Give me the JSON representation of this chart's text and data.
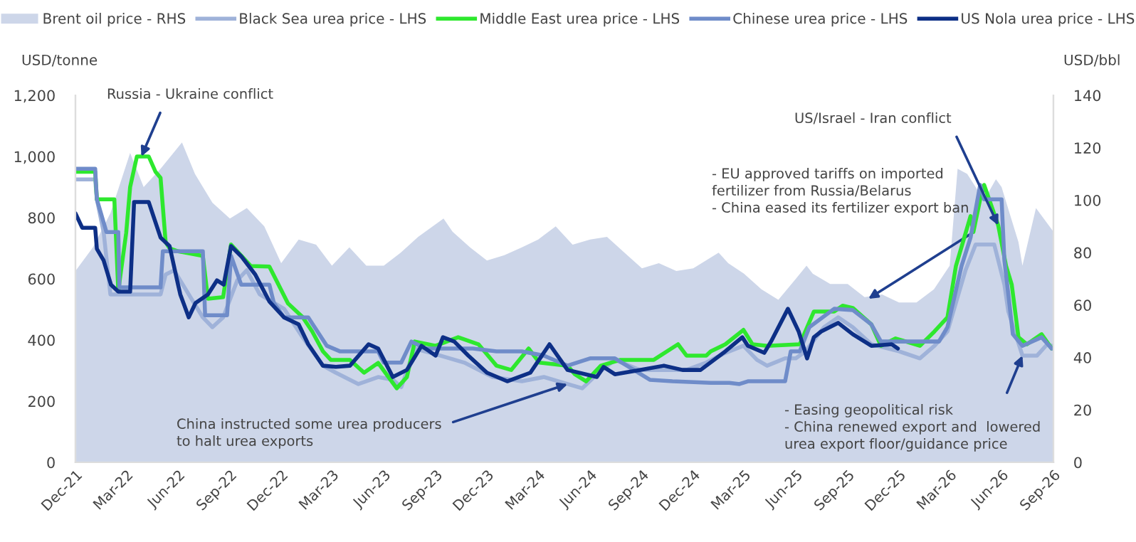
{
  "chart_data": {
    "type": "line",
    "ylabel": "USD/tonne",
    "y2label": "USD/bbl",
    "ylim": [
      0,
      1200
    ],
    "yticks": [
      0,
      200,
      400,
      600,
      800,
      {
        "value": 1000,
        "label": "1,000"
      },
      {
        "value": 1200,
        "label": "1,200"
      }
    ],
    "y2lim": [
      0,
      140
    ],
    "y2ticks": [
      0,
      20,
      40,
      60,
      80,
      100,
      120,
      140
    ],
    "xlim": [
      "2021-12-01",
      "2026-09-01"
    ],
    "xticks": [
      {
        "value": "2021-12-01",
        "label": "Dec-21"
      },
      {
        "value": "2022-03-01",
        "label": "Mar-22"
      },
      {
        "value": "2022-06-01",
        "label": "Jun-22"
      },
      {
        "value": "2022-09-01",
        "label": "Sep-22"
      },
      {
        "value": "2022-12-01",
        "label": "Dec-22"
      },
      {
        "value": "2023-03-01",
        "label": "Mar-23"
      },
      {
        "value": "2023-06-01",
        "label": "Jun-23"
      },
      {
        "value": "2023-09-01",
        "label": "Sep-23"
      },
      {
        "value": "2023-12-01",
        "label": "Dec-23"
      },
      {
        "value": "2024-03-01",
        "label": "Mar-24"
      },
      {
        "value": "2024-06-01",
        "label": "Jun-24"
      },
      {
        "value": "2024-09-01",
        "label": "Sep-24"
      },
      {
        "value": "2024-12-01",
        "label": "Dec-24"
      },
      {
        "value": "2025-03-01",
        "label": "Mar-25"
      },
      {
        "value": "2025-06-01",
        "label": "Jun-25"
      },
      {
        "value": "2025-09-01",
        "label": "Sep-25"
      },
      {
        "value": "2025-12-01",
        "label": "Dec-25"
      },
      {
        "value": "2026-03-01",
        "label": "Mar-26"
      },
      {
        "value": "2026-06-01",
        "label": "Jun-26"
      },
      {
        "value": "2026-09-01",
        "label": "Sep-26"
      }
    ],
    "legend": "top",
    "grid": false,
    "annotations": [
      {
        "text": "Russia - Ukraine conflict",
        "x": "2022-03-28",
        "y": 1000
      },
      {
        "text": "US/Israel - Iran conflict",
        "x": "2026-05-26",
        "y": 775
      },
      "- EU approved tariffs on imported\nfertilizer from Russia/Belarus\n- China eased its fertilizer export ban",
      {
        "text": "China instructed some urea producers\nto halt urea exports",
        "x": "2024-04-22",
        "y": 256
      },
      {
        "text": "- Easing geopolitical risk\n- China renewed export and  lowered\nurea export floor/guidance price",
        "x": "2026-07-08",
        "y": 349
      }
    ],
    "series": [
      {
        "name": "Brent oil price - RHS",
        "type": "area",
        "axis": "y2",
        "color": "#cdd6e9",
        "x": [
          "2021-12-01",
          "2022-01-01",
          "2022-02-01",
          "2022-03-08",
          "2022-04-01",
          "2022-05-01",
          "2022-06-08",
          "2022-07-01",
          "2022-08-01",
          "2022-09-01",
          "2022-10-01",
          "2022-11-01",
          "2022-12-01",
          "2023-01-01",
          "2023-02-01",
          "2023-03-01",
          "2023-04-01",
          "2023-05-01",
          "2023-06-01",
          "2023-07-01",
          "2023-08-01",
          "2023-09-15",
          "2023-10-01",
          "2023-11-01",
          "2023-12-01",
          "2024-01-01",
          "2024-02-01",
          "2024-03-01",
          "2024-04-01",
          "2024-05-01",
          "2024-06-01",
          "2024-07-01",
          "2024-08-01",
          "2024-09-01",
          "2024-10-01",
          "2024-11-01",
          "2024-12-01",
          "2025-01-15",
          "2025-02-01",
          "2025-03-01",
          "2025-04-01",
          "2025-05-01",
          "2025-06-01",
          "2025-06-20",
          "2025-07-01",
          "2025-08-01",
          "2025-09-01",
          "2025-10-01",
          "2025-11-01",
          "2025-12-01",
          "2026-01-01",
          "2026-02-01",
          "2026-03-01",
          "2026-03-15",
          "2026-04-01",
          "2026-05-01",
          "2026-05-22",
          "2026-06-01",
          "2026-07-01",
          "2026-07-08",
          "2026-08-01",
          "2026-09-01"
        ],
        "values": [
          73,
          82,
          95,
          118,
          105,
          112,
          122,
          110,
          99,
          93,
          97,
          90,
          76,
          85,
          83,
          75,
          82,
          75,
          75,
          80,
          86,
          93,
          88,
          82,
          77,
          79,
          82,
          85,
          90,
          83,
          85,
          86,
          80,
          74,
          76,
          73,
          74,
          80,
          76,
          72,
          66,
          62,
          70,
          75,
          72,
          68,
          68,
          63,
          64,
          61,
          61,
          66,
          75,
          112,
          110,
          100,
          108,
          105,
          84,
          75,
          97,
          88
        ]
      },
      {
        "name": "Black Sea urea price - LHS",
        "color": "#9fb2d9",
        "x": [
          "2021-12-01",
          "2022-01-05",
          "2022-01-08",
          "2022-01-20",
          "2022-02-01",
          "2022-05-01",
          "2022-05-10",
          "2022-05-25",
          "2022-06-20",
          "2022-07-15",
          "2022-08-01",
          "2022-08-20",
          "2022-09-14",
          "2022-10-01",
          "2022-10-24",
          "2022-12-06",
          "2023-01-08",
          "2023-02-13",
          "2023-03-08",
          "2023-04-17",
          "2023-05-22",
          "2023-06-17",
          "2023-07-02",
          "2023-07-26",
          "2023-09-09",
          "2023-10-22",
          "2023-12-11",
          "2024-02-01",
          "2024-03-11",
          "2024-04-22",
          "2024-05-18",
          "2024-06-13",
          "2024-07-15",
          "2024-08-28",
          "2024-11-19",
          "2024-12-24",
          "2025-01-27",
          "2025-02-28",
          "2025-03-24",
          "2025-04-11",
          "2025-05-13",
          "2025-06-01",
          "2025-06-18",
          "2025-07-21",
          "2025-08-15",
          "2025-09-10",
          "2025-10-13",
          "2025-12-01",
          "2026-01-07",
          "2026-02-02",
          "2026-02-25",
          "2026-03-29",
          "2026-04-16",
          "2026-05-19",
          "2026-06-06",
          "2026-06-13",
          "2026-07-08",
          "2026-08-03",
          "2026-08-21",
          "2026-08-29"
        ],
        "values": [
          925,
          925,
          860,
          753,
          549,
          549,
          614,
          628,
          549,
          474,
          442,
          474,
          595,
          628,
          549,
          502,
          409,
          316,
          293,
          256,
          279,
          270,
          246,
          372,
          349,
          326,
          279,
          265,
          279,
          256,
          242,
          288,
          335,
          302,
          302,
          326,
          358,
          381,
          335,
          316,
          340,
          340,
          363,
          442,
          474,
          442,
          386,
          363,
          340,
          381,
          428,
          628,
          712,
          712,
          581,
          493,
          349,
          349,
          386,
          381
        ]
      },
      {
        "name": "Middle East urea price - LHS",
        "color": "#2ee82e",
        "x": [
          "2021-12-01",
          "2022-01-05",
          "2022-01-08",
          "2022-02-01",
          "2022-02-08",
          "2022-02-15",
          "2022-03-01",
          "2022-03-08",
          "2022-03-20",
          "2022-04-10",
          "2022-04-22",
          "2022-05-01",
          "2022-05-10",
          "2022-05-17",
          "2022-06-01",
          "2022-07-15",
          "2022-07-24",
          "2022-08-20",
          "2022-09-03",
          "2022-10-08",
          "2022-11-10",
          "2022-12-13",
          "2023-01-08",
          "2023-01-25",
          "2023-02-13",
          "2023-02-27",
          "2023-04-02",
          "2023-04-27",
          "2023-05-22",
          "2023-06-24",
          "2023-07-12",
          "2023-07-26",
          "2023-09-01",
          "2023-10-11",
          "2023-11-16",
          "2023-12-18",
          "2024-01-13",
          "2024-02-13",
          "2024-03-03",
          "2024-04-22",
          "2024-05-05",
          "2024-05-25",
          "2024-06-20",
          "2024-07-25",
          "2024-09-22",
          "2024-11-04",
          "2024-11-19",
          "2024-12-24",
          "2025-01-01",
          "2025-01-27",
          "2025-02-28",
          "2025-03-16",
          "2025-04-11",
          "2025-06-08",
          "2025-07-03",
          "2025-08-08",
          "2025-08-23",
          "2025-09-10",
          "2025-10-13",
          "2025-10-30",
          "2025-11-25",
          "2026-01-07",
          "2026-02-02",
          "2026-02-25",
          "2026-03-12",
          "2026-04-07",
          "2026-04-12",
          "2026-04-24",
          "2026-05-01",
          "2026-05-26",
          "2026-06-09",
          "2026-06-19",
          "2026-07-01",
          "2026-07-16",
          "2026-08-11",
          "2026-08-29"
        ],
        "values": [
          950,
          950,
          860,
          860,
          860,
          560,
          750,
          900,
          1000,
          1000,
          950,
          930,
          720,
          700,
          690,
          675,
          535,
          540,
          712,
          642,
          640,
          520,
          475,
          428,
          363,
          335,
          335,
          293,
          325,
          242,
          279,
          395,
          381,
          409,
          386,
          316,
          302,
          372,
          326,
          316,
          288,
          265,
          316,
          335,
          335,
          386,
          349,
          349,
          363,
          386,
          433,
          386,
          381,
          386,
          493,
          493,
          512,
          505,
          451,
          381,
          405,
          381,
          428,
          474,
          642,
          805,
          753,
          860,
          907,
          775,
          642,
          581,
          409,
          386,
          419,
          372
        ]
      },
      {
        "name": "Chinese urea price - LHS",
        "color": "#6f8cc9",
        "x": [
          "2021-12-01",
          "2022-01-05",
          "2022-01-08",
          "2022-01-25",
          "2022-02-15",
          "2022-02-17",
          "2022-05-01",
          "2022-05-05",
          "2022-07-15",
          "2022-07-19",
          "2022-08-27",
          "2022-09-03",
          "2022-09-21",
          "2022-11-10",
          "2022-11-18",
          "2022-12-06",
          "2023-01-18",
          "2023-02-20",
          "2023-03-15",
          "2023-05-22",
          "2023-06-01",
          "2023-07-02",
          "2023-07-20",
          "2023-08-14",
          "2023-11-06",
          "2023-12-18",
          "2024-02-01",
          "2024-03-11",
          "2024-04-22",
          "2024-06-01",
          "2024-07-15",
          "2024-09-15",
          "2024-10-25",
          "2025-01-01",
          "2025-02-03",
          "2025-02-21",
          "2025-03-08",
          "2025-05-13",
          "2025-05-23",
          "2025-06-08",
          "2025-06-25",
          "2025-08-08",
          "2025-09-10",
          "2025-10-13",
          "2025-10-30",
          "2026-02-10",
          "2026-02-25",
          "2026-03-22",
          "2026-04-07",
          "2026-04-24",
          "2026-05-01",
          "2026-06-01",
          "2026-06-06",
          "2026-06-13",
          "2026-06-21",
          "2026-07-08",
          "2026-08-11",
          "2026-08-29"
        ],
        "values": [
          960,
          960,
          860,
          753,
          753,
          572,
          572,
          690,
          690,
          481,
          481,
          675,
          581,
          581,
          521,
          474,
          474,
          381,
          363,
          363,
          326,
          326,
          395,
          372,
          372,
          363,
          363,
          349,
          316,
          340,
          340,
          270,
          265,
          260,
          260,
          256,
          265,
          265,
          363,
          363,
          442,
          502,
          498,
          451,
          395,
          395,
          442,
          642,
          735,
          907,
          860,
          860,
          660,
          549,
          419,
          381,
          409,
          372
        ]
      },
      {
        "name": "US Nola urea price - LHS",
        "color": "#0d2f86",
        "x": [
          "2021-12-01",
          "2021-12-13",
          "2022-01-05",
          "2022-01-08",
          "2022-01-20",
          "2022-02-02",
          "2022-02-15",
          "2022-03-08",
          "2022-03-15",
          "2022-04-10",
          "2022-05-01",
          "2022-05-17",
          "2022-06-01",
          "2022-06-05",
          "2022-06-20",
          "2022-07-02",
          "2022-07-24",
          "2022-08-09",
          "2022-08-21",
          "2022-09-03",
          "2022-09-21",
          "2022-10-16",
          "2022-11-10",
          "2022-12-06",
          "2023-01-01",
          "2023-01-18",
          "2023-02-13",
          "2023-03-08",
          "2023-04-02",
          "2023-05-05",
          "2023-05-22",
          "2023-06-17",
          "2023-07-12",
          "2023-08-07",
          "2023-09-01",
          "2023-09-14",
          "2023-10-04",
          "2023-10-29",
          "2023-12-01",
          "2024-01-06",
          "2024-02-16",
          "2024-03-21",
          "2024-04-22",
          "2024-06-13",
          "2024-06-25",
          "2024-07-15",
          "2024-08-28",
          "2024-10-10",
          "2024-11-12",
          "2024-12-14",
          "2025-01-27",
          "2025-02-26",
          "2025-03-08",
          "2025-04-06",
          "2025-04-18",
          "2025-05-18",
          "2025-06-06",
          "2025-06-21",
          "2025-07-03",
          "2025-07-16",
          "2025-08-15",
          "2025-09-10",
          "2025-10-13",
          "2025-11-18",
          "2025-11-29"
        ],
        "values": [
          814,
          767,
          767,
          698,
          660,
          581,
          558,
          558,
          851,
          851,
          735,
          707,
          581,
          549,
          474,
          521,
          549,
          595,
          581,
          707,
          674,
          614,
          526,
          474,
          451,
          386,
          316,
          312,
          316,
          386,
          372,
          279,
          302,
          381,
          349,
          409,
          395,
          349,
          293,
          265,
          293,
          386,
          302,
          279,
          312,
          288,
          302,
          316,
          302,
          302,
          363,
          409,
          381,
          358,
          395,
          502,
          428,
          340,
          409,
          428,
          456,
          419,
          381,
          386,
          372
        ]
      }
    ]
  }
}
